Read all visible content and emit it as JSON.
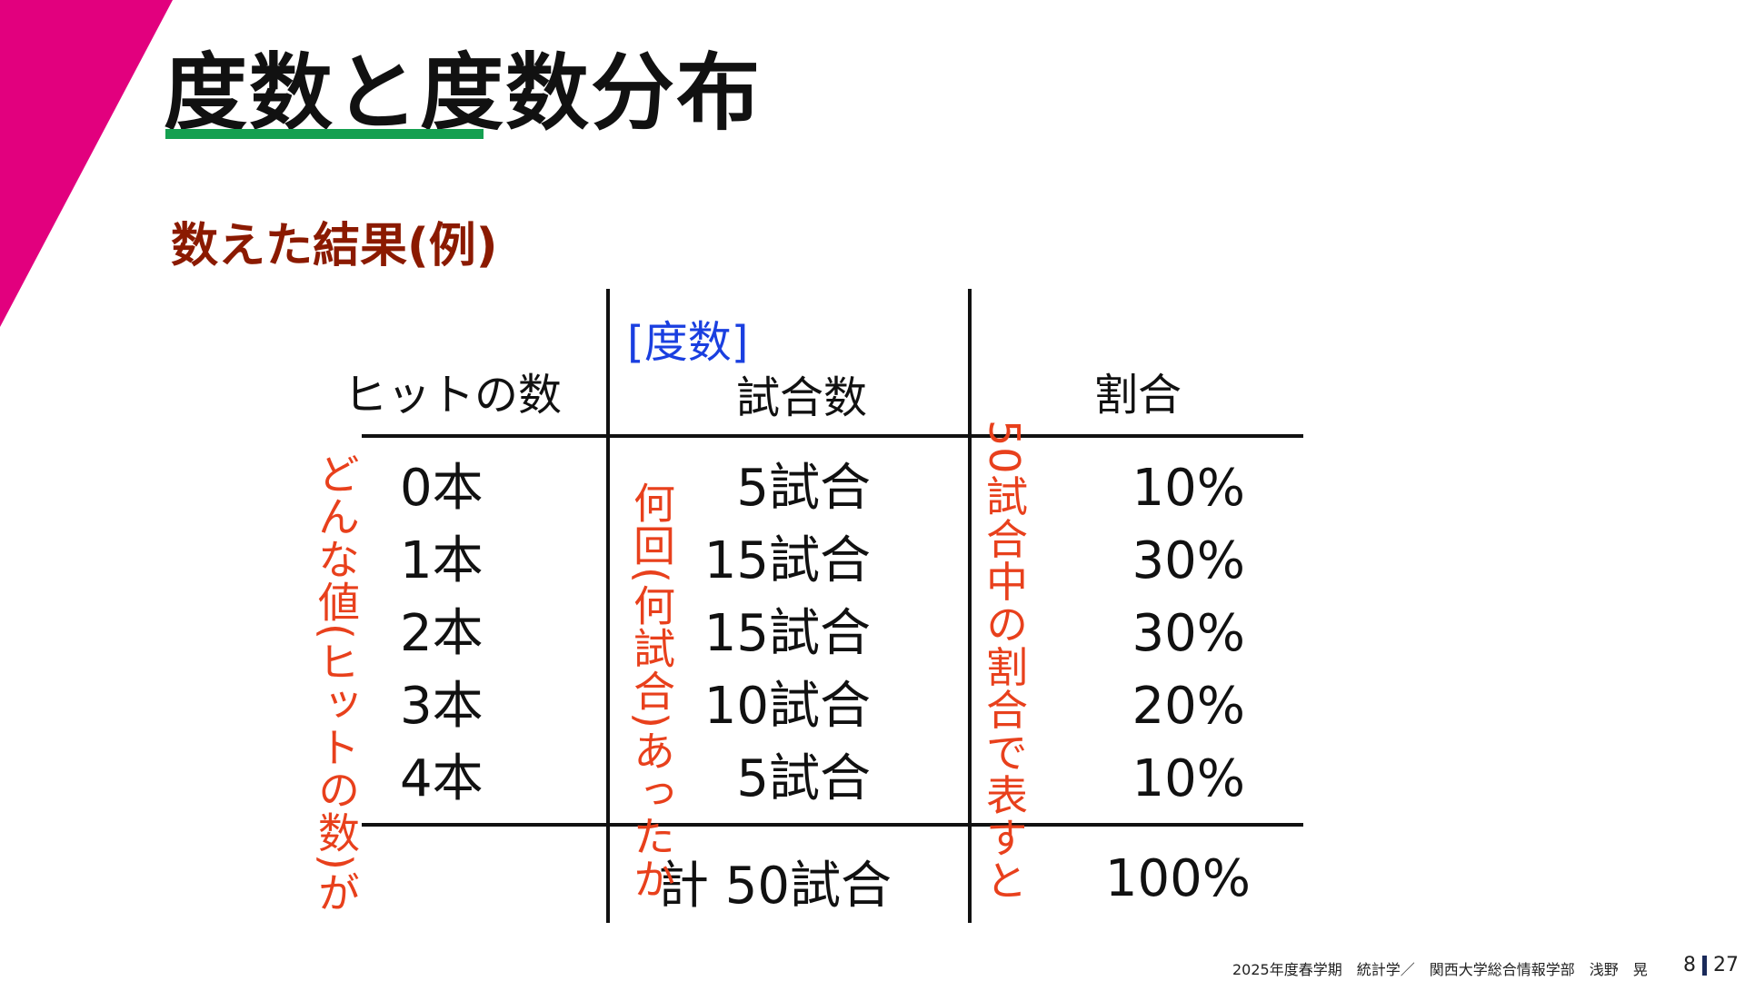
{
  "slide": {
    "title": "度数と度数分布",
    "subtitle": "数えた結果(例)",
    "accent_colors": {
      "corner": "#e2007e",
      "underline": "#14a050",
      "subtitle": "#8b1a00",
      "frequency_label": "#1a3fe0",
      "notes": "#e8401c"
    }
  },
  "table": {
    "frequency_label": "[度数]",
    "headers": {
      "value": "ヒットの数",
      "count": "試合数",
      "ratio": "割合"
    },
    "rows": [
      {
        "value": "0本",
        "count": "5試合",
        "ratio": "10%"
      },
      {
        "value": "1本",
        "count": "15試合",
        "ratio": "30%"
      },
      {
        "value": "2本",
        "count": "15試合",
        "ratio": "30%"
      },
      {
        "value": "3本",
        "count": "10試合",
        "ratio": "20%"
      },
      {
        "value": "4本",
        "count": "5試合",
        "ratio": "10%"
      }
    ],
    "total": {
      "count": "計 50試合",
      "ratio": "100%"
    }
  },
  "notes": {
    "value_note": "どんな値(ヒットの数)が",
    "count_note": "何回(何試合)あったか",
    "ratio_note": "50試合中の割合で表すと"
  },
  "footer": {
    "course": "2025年度春学期　統計学／　関西大学総合情報学部　浅野　晃",
    "page": "8",
    "total_pages": "27"
  }
}
